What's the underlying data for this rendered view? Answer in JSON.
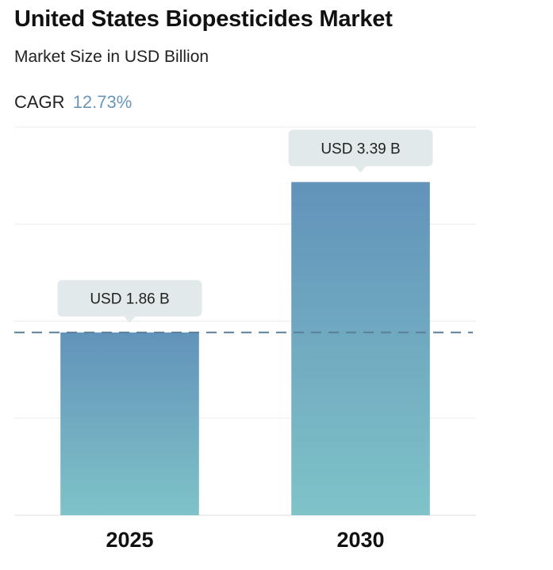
{
  "header": {
    "title": "United States Biopesticides Market",
    "subtitle": "Market Size in USD Billion",
    "cagr_label": "CAGR",
    "cagr_value": "12.73%"
  },
  "colors": {
    "accent": "#6a97b8",
    "bar_top": "#6293ba",
    "bar_bottom": "#7fc3c8",
    "tooltip_bg": "#e2e9eb",
    "dashed_line": "#5b7f99",
    "grid": "#ececec"
  },
  "chart_data": {
    "type": "bar",
    "categories": [
      "2025",
      "2030"
    ],
    "values": [
      1.86,
      3.39
    ],
    "data_labels": [
      "USD 1.86 B",
      "USD 3.39 B"
    ],
    "title": "United States Biopesticides Market",
    "subtitle": "Market Size in USD Billion",
    "xlabel": "",
    "ylabel": "",
    "ylim": [
      0,
      3.95
    ],
    "reference_line": 1.86,
    "grid": true,
    "legend": "none"
  }
}
